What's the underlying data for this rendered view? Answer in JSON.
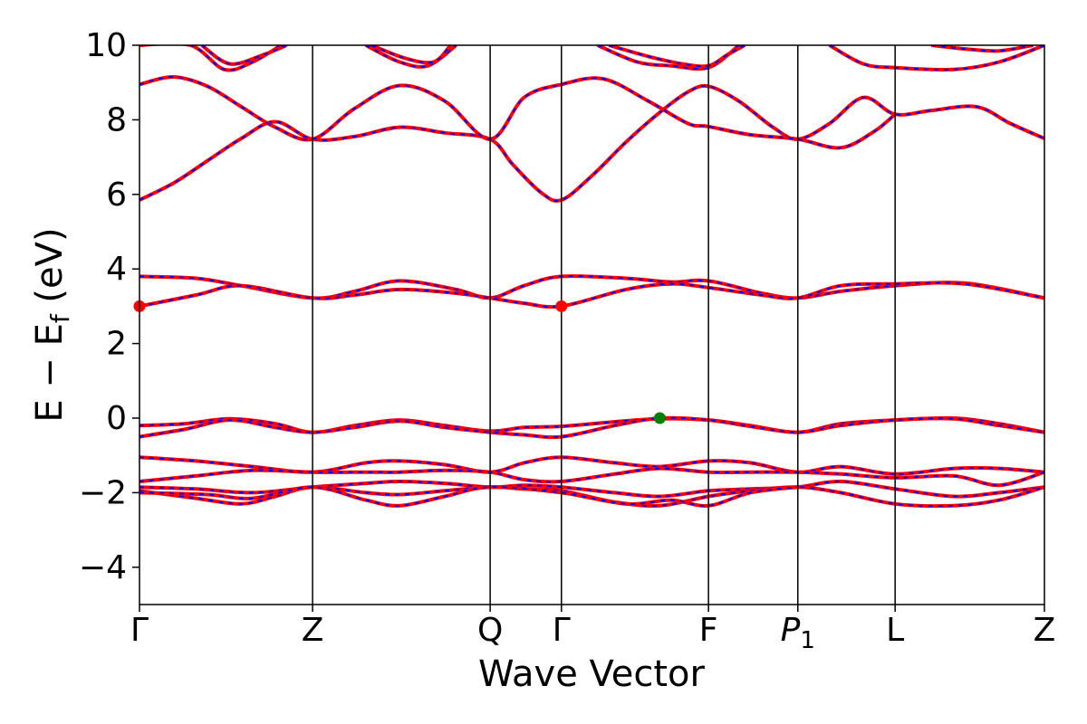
{
  "chart_data": {
    "type": "line",
    "title": "",
    "xlabel": "Wave Vector",
    "ylabel": {
      "main": "E − E",
      "sub": "f",
      "unit": " (eV)"
    },
    "ylim": [
      -5,
      10
    ],
    "yticks": [
      "−4",
      "−2",
      "0",
      "2",
      "4",
      "6",
      "8",
      "10"
    ],
    "ytick_values": [
      -4,
      -2,
      0,
      2,
      4,
      6,
      8,
      10
    ],
    "xlim": [
      0,
      8
    ],
    "kpoints": [
      {
        "label": "Γ",
        "x": 0.0
      },
      {
        "label": "Z",
        "x": 1.53
      },
      {
        "label": "Q",
        "x": 3.1
      },
      {
        "label": "Γ",
        "x": 3.73
      },
      {
        "label": "F",
        "x": 5.03
      },
      {
        "label": "P",
        "sub": "1",
        "x": 5.82
      },
      {
        "label": "L",
        "x": 6.68
      },
      {
        "label": "Z",
        "x": 8.0
      }
    ],
    "legend": "none",
    "grid": false,
    "colors": {
      "solid": "#ff0000",
      "dashed": "#0000ff",
      "cbm_marker": "#ff0000",
      "vbm_marker": "#008000"
    },
    "series": [
      {
        "values": [
          [
            0,
            5.85
          ],
          [
            0.3,
            6.3
          ],
          [
            0.6,
            6.9
          ],
          [
            0.9,
            7.5
          ],
          [
            1.2,
            7.95
          ],
          [
            1.53,
            7.48
          ],
          [
            1.9,
            7.55
          ],
          [
            2.3,
            7.8
          ],
          [
            2.7,
            7.65
          ],
          [
            3.1,
            7.48
          ],
          [
            3.3,
            6.8
          ],
          [
            3.55,
            6.05
          ],
          [
            3.73,
            5.85
          ],
          [
            4.0,
            6.5
          ],
          [
            4.3,
            7.4
          ],
          [
            4.6,
            8.2
          ],
          [
            4.85,
            8.75
          ],
          [
            5.03,
            8.9
          ],
          [
            5.3,
            8.5
          ],
          [
            5.6,
            7.8
          ],
          [
            5.82,
            7.48
          ],
          [
            6.1,
            7.9
          ],
          [
            6.4,
            8.6
          ],
          [
            6.68,
            8.15
          ],
          [
            7.0,
            8.25
          ],
          [
            7.4,
            8.35
          ],
          [
            7.7,
            7.9
          ],
          [
            8.0,
            7.5
          ]
        ]
      },
      {
        "values": [
          [
            0,
            8.95
          ],
          [
            0.3,
            9.15
          ],
          [
            0.6,
            8.9
          ],
          [
            0.9,
            8.35
          ],
          [
            1.2,
            7.8
          ],
          [
            1.53,
            7.48
          ],
          [
            1.9,
            8.3
          ],
          [
            2.3,
            8.92
          ],
          [
            2.7,
            8.5
          ],
          [
            3.1,
            7.48
          ],
          [
            3.4,
            8.6
          ],
          [
            3.73,
            8.95
          ],
          [
            4.1,
            9.1
          ],
          [
            4.5,
            8.5
          ],
          [
            4.85,
            7.9
          ],
          [
            5.03,
            7.82
          ],
          [
            5.4,
            7.6
          ],
          [
            5.82,
            7.48
          ],
          [
            6.2,
            7.25
          ],
          [
            6.5,
            7.7
          ],
          [
            6.68,
            8.15
          ]
        ]
      },
      {
        "values": [
          [
            0,
            3.8
          ],
          [
            0.5,
            3.75
          ],
          [
            0.9,
            3.55
          ],
          [
            1.53,
            3.22
          ],
          [
            1.9,
            3.4
          ],
          [
            2.3,
            3.68
          ],
          [
            2.8,
            3.45
          ],
          [
            3.1,
            3.22
          ],
          [
            3.4,
            3.55
          ],
          [
            3.73,
            3.8
          ],
          [
            4.3,
            3.75
          ],
          [
            4.7,
            3.65
          ],
          [
            5.03,
            3.68
          ],
          [
            5.5,
            3.35
          ],
          [
            5.82,
            3.22
          ],
          [
            6.2,
            3.4
          ],
          [
            6.68,
            3.55
          ],
          [
            7.3,
            3.62
          ],
          [
            8.0,
            3.22
          ]
        ]
      },
      {
        "values": [
          [
            0,
            3.0
          ],
          [
            0.5,
            3.3
          ],
          [
            0.9,
            3.55
          ],
          [
            1.53,
            3.22
          ],
          [
            1.9,
            3.3
          ],
          [
            2.3,
            3.45
          ],
          [
            2.8,
            3.35
          ],
          [
            3.1,
            3.22
          ],
          [
            3.4,
            3.08
          ],
          [
            3.73,
            3.0
          ],
          [
            4.3,
            3.45
          ],
          [
            4.7,
            3.6
          ],
          [
            5.03,
            3.5
          ],
          [
            5.5,
            3.3
          ],
          [
            5.82,
            3.22
          ],
          [
            6.2,
            3.55
          ],
          [
            6.68,
            3.6
          ],
          [
            7.3,
            3.6
          ],
          [
            8.0,
            3.22
          ]
        ]
      },
      {
        "values": [
          [
            0,
            -0.2
          ],
          [
            0.4,
            -0.15
          ],
          [
            0.8,
            -0.02
          ],
          [
            1.2,
            -0.15
          ],
          [
            1.53,
            -0.38
          ],
          [
            1.9,
            -0.2
          ],
          [
            2.3,
            -0.05
          ],
          [
            2.7,
            -0.2
          ],
          [
            3.1,
            -0.35
          ],
          [
            3.4,
            -0.25
          ],
          [
            3.73,
            -0.22
          ],
          [
            4.2,
            -0.1
          ],
          [
            4.6,
            -0.02
          ],
          [
            5.03,
            -0.05
          ],
          [
            5.4,
            -0.2
          ],
          [
            5.82,
            -0.38
          ],
          [
            6.2,
            -0.15
          ],
          [
            6.68,
            -0.05
          ],
          [
            7.2,
            0.0
          ],
          [
            7.6,
            -0.15
          ],
          [
            8.0,
            -0.38
          ]
        ]
      },
      {
        "values": [
          [
            0,
            -0.5
          ],
          [
            0.4,
            -0.3
          ],
          [
            0.8,
            -0.05
          ],
          [
            1.2,
            -0.25
          ],
          [
            1.53,
            -0.38
          ],
          [
            1.9,
            -0.25
          ],
          [
            2.3,
            -0.08
          ],
          [
            2.7,
            -0.25
          ],
          [
            3.1,
            -0.38
          ],
          [
            3.4,
            -0.45
          ],
          [
            3.73,
            -0.5
          ],
          [
            4.2,
            -0.2
          ],
          [
            4.6,
            0.0
          ],
          [
            5.03,
            -0.05
          ],
          [
            5.4,
            -0.22
          ],
          [
            5.82,
            -0.38
          ],
          [
            6.2,
            -0.2
          ],
          [
            6.68,
            -0.05
          ],
          [
            7.2,
            -0.02
          ],
          [
            7.6,
            -0.2
          ],
          [
            8.0,
            -0.38
          ]
        ]
      },
      {
        "values": [
          [
            0,
            -1.05
          ],
          [
            0.5,
            -1.15
          ],
          [
            1.0,
            -1.3
          ],
          [
            1.53,
            -1.45
          ],
          [
            2.0,
            -1.2
          ],
          [
            2.3,
            -1.15
          ],
          [
            2.7,
            -1.25
          ],
          [
            3.1,
            -1.45
          ],
          [
            3.4,
            -1.2
          ],
          [
            3.73,
            -1.05
          ],
          [
            4.2,
            -1.2
          ],
          [
            4.6,
            -1.3
          ],
          [
            5.03,
            -1.15
          ],
          [
            5.4,
            -1.2
          ],
          [
            5.82,
            -1.45
          ],
          [
            6.2,
            -1.3
          ],
          [
            6.68,
            -1.5
          ],
          [
            7.2,
            -1.35
          ],
          [
            7.6,
            -1.35
          ],
          [
            8.0,
            -1.45
          ]
        ]
      },
      {
        "values": [
          [
            0,
            -1.7
          ],
          [
            0.5,
            -1.55
          ],
          [
            1.0,
            -1.4
          ],
          [
            1.53,
            -1.45
          ],
          [
            2.0,
            -1.45
          ],
          [
            2.3,
            -1.45
          ],
          [
            2.7,
            -1.4
          ],
          [
            3.1,
            -1.45
          ],
          [
            3.4,
            -1.65
          ],
          [
            3.73,
            -1.7
          ],
          [
            4.2,
            -1.5
          ],
          [
            4.6,
            -1.35
          ],
          [
            5.03,
            -1.45
          ],
          [
            5.4,
            -1.45
          ],
          [
            5.82,
            -1.45
          ],
          [
            6.2,
            -1.5
          ],
          [
            6.68,
            -1.6
          ],
          [
            7.2,
            -1.55
          ],
          [
            7.6,
            -1.8
          ],
          [
            8.0,
            -1.45
          ]
        ]
      },
      {
        "values": [
          [
            0,
            -1.85
          ],
          [
            0.5,
            -1.9
          ],
          [
            1.0,
            -2.0
          ],
          [
            1.53,
            -1.85
          ],
          [
            2.0,
            -1.75
          ],
          [
            2.3,
            -1.7
          ],
          [
            2.7,
            -1.75
          ],
          [
            3.1,
            -1.85
          ],
          [
            3.4,
            -1.8
          ],
          [
            3.73,
            -1.85
          ],
          [
            4.2,
            -2.0
          ],
          [
            4.6,
            -2.1
          ],
          [
            5.03,
            -1.95
          ],
          [
            5.4,
            -1.9
          ],
          [
            5.82,
            -1.85
          ],
          [
            6.2,
            -1.7
          ],
          [
            6.68,
            -1.9
          ],
          [
            7.2,
            -2.1
          ],
          [
            7.6,
            -2.0
          ],
          [
            8.0,
            -1.85
          ]
        ]
      },
      {
        "values": [
          [
            0,
            -1.95
          ],
          [
            0.5,
            -2.15
          ],
          [
            0.9,
            -2.3
          ],
          [
            1.2,
            -2.1
          ],
          [
            1.53,
            -1.85
          ],
          [
            2.0,
            -2.0
          ],
          [
            2.3,
            -2.05
          ],
          [
            2.7,
            -1.95
          ],
          [
            3.1,
            -1.85
          ],
          [
            3.4,
            -1.9
          ],
          [
            3.73,
            -1.95
          ],
          [
            4.2,
            -2.25
          ],
          [
            4.6,
            -2.35
          ],
          [
            5.03,
            -2.1
          ],
          [
            5.4,
            -1.95
          ],
          [
            5.82,
            -1.85
          ],
          [
            6.2,
            -2.0
          ],
          [
            6.68,
            -2.3
          ],
          [
            7.2,
            -2.35
          ],
          [
            7.6,
            -2.2
          ],
          [
            8.0,
            -1.85
          ]
        ]
      },
      {
        "values": [
          [
            0,
            -2.0
          ],
          [
            0.6,
            -2.05
          ],
          [
            1.0,
            -2.15
          ],
          [
            1.53,
            -1.85
          ],
          [
            2.0,
            -2.2
          ],
          [
            2.3,
            -2.35
          ],
          [
            2.7,
            -2.1
          ],
          [
            3.1,
            -1.85
          ],
          [
            3.73,
            -2.0
          ],
          [
            4.3,
            -2.3
          ],
          [
            4.7,
            -2.2
          ],
          [
            5.03,
            -2.35
          ],
          [
            5.4,
            -2.0
          ],
          [
            5.82,
            -1.85
          ]
        ]
      },
      {
        "values": [
          [
            0,
            10.0
          ],
          [
            0.45,
            10.0
          ],
          [
            0.75,
            9.35
          ],
          [
            1.0,
            9.55
          ],
          [
            1.25,
            10.0
          ]
        ]
      },
      {
        "values": [
          [
            0.55,
            10.0
          ],
          [
            0.8,
            9.5
          ],
          [
            1.1,
            9.75
          ],
          [
            1.3,
            10.0
          ]
        ]
      },
      {
        "values": [
          [
            2.0,
            10.0
          ],
          [
            2.3,
            9.55
          ],
          [
            2.55,
            9.45
          ],
          [
            2.8,
            10.0
          ]
        ]
      },
      {
        "values": [
          [
            2.05,
            10.0
          ],
          [
            2.35,
            9.65
          ],
          [
            2.6,
            9.55
          ],
          [
            2.75,
            10.0
          ]
        ]
      },
      {
        "values": [
          [
            4.05,
            10.0
          ],
          [
            4.4,
            9.55
          ],
          [
            4.7,
            9.45
          ],
          [
            5.03,
            9.4
          ],
          [
            5.3,
            10.0
          ]
        ]
      },
      {
        "values": [
          [
            4.15,
            10.0
          ],
          [
            4.5,
            9.7
          ],
          [
            4.8,
            9.5
          ],
          [
            5.03,
            9.45
          ],
          [
            5.2,
            9.75
          ],
          [
            5.35,
            10.0
          ]
        ]
      },
      {
        "values": [
          [
            6.1,
            10.0
          ],
          [
            6.4,
            9.5
          ],
          [
            6.68,
            9.4
          ],
          [
            7.2,
            9.35
          ],
          [
            7.6,
            9.55
          ],
          [
            8.0,
            10.0
          ]
        ]
      },
      {
        "values": [
          [
            7.0,
            10.0
          ],
          [
            7.3,
            9.9
          ],
          [
            7.6,
            9.85
          ],
          [
            7.9,
            10.0
          ]
        ]
      }
    ],
    "markers": [
      {
        "x": 0.0,
        "y": 3.0,
        "color": "#ff0000"
      },
      {
        "x": 3.73,
        "y": 3.0,
        "color": "#ff0000"
      },
      {
        "x": 4.6,
        "y": 0.0,
        "color": "#008000"
      }
    ]
  }
}
